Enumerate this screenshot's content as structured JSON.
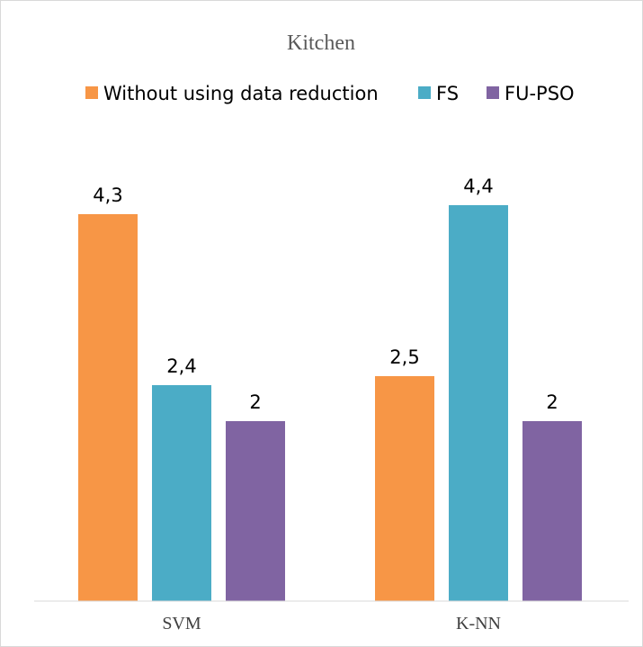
{
  "chart_data": {
    "type": "bar",
    "title": "Kitchen",
    "categories": [
      "SVM",
      "K-NN"
    ],
    "series": [
      {
        "name": "Without using data reduction",
        "color": "#F79646",
        "values": [
          4.3,
          2.5
        ],
        "labels": [
          "4,3",
          "2,5"
        ]
      },
      {
        "name": "FS",
        "color": "#4BACC6",
        "values": [
          2.4,
          4.4
        ],
        "labels": [
          "2,4",
          "4,4"
        ]
      },
      {
        "name": "FU-PSO",
        "color": "#8064A2",
        "values": [
          2,
          2
        ],
        "labels": [
          "2",
          "2"
        ]
      }
    ],
    "ylim": [
      0,
      5
    ],
    "grid": false,
    "legend": "top",
    "xlabel": "",
    "ylabel": ""
  }
}
